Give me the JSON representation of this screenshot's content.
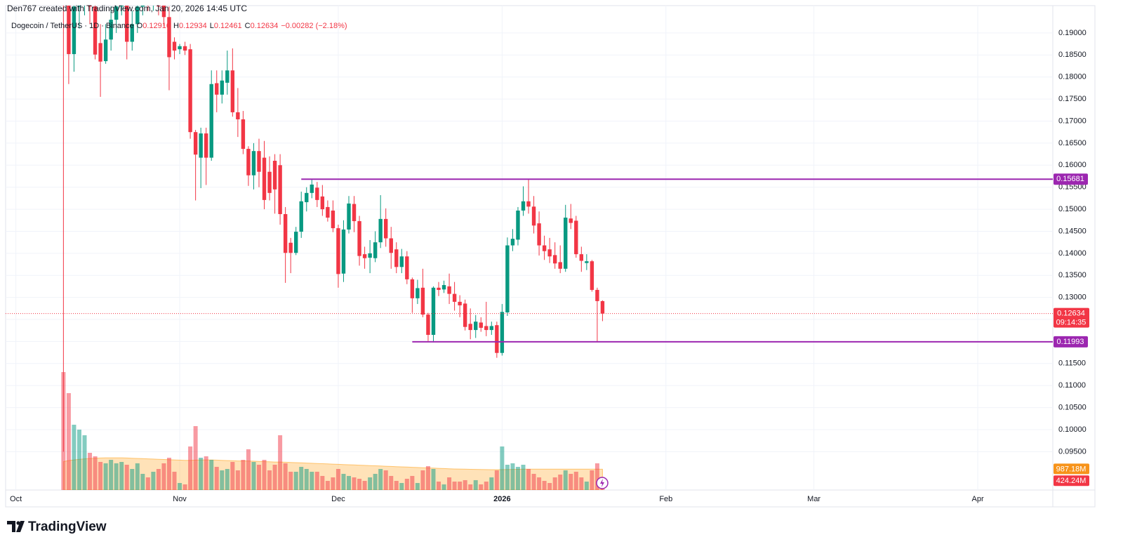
{
  "chart_data": {
    "type": "candlestick",
    "credit": "Den767 created with TradingView.com, Jan 20, 2026 14:45 UTC",
    "symbol": "Dogecoin / TetherUS · 1D · Binance",
    "legend_labels": [
      "O",
      "H",
      "L",
      "C"
    ],
    "change_label": "−0.00282 (−2.18%)",
    "brand": "TradingView",
    "up_color": "#089981",
    "down_color": "#f23645",
    "x": [
      9,
      10,
      11,
      12,
      13,
      14,
      15,
      16,
      17,
      18,
      19,
      20,
      21,
      22,
      23,
      24,
      25,
      26,
      27,
      28,
      29,
      30,
      31,
      32,
      33,
      34,
      35,
      36,
      37,
      38,
      39,
      40,
      41,
      42,
      43,
      44,
      45,
      46,
      47,
      48,
      49,
      50,
      51,
      52,
      53,
      54,
      55,
      56,
      57,
      58,
      59,
      60,
      61,
      62,
      63,
      64,
      65,
      66,
      67,
      68,
      69,
      70,
      71,
      72,
      73,
      74,
      75,
      76,
      77,
      78,
      79,
      80,
      81,
      82,
      83,
      84,
      85,
      86,
      87,
      88,
      89,
      90,
      91,
      92,
      93,
      94,
      95,
      96,
      97,
      98,
      99,
      100,
      101,
      102,
      103,
      104,
      105,
      106,
      107,
      108,
      109,
      110,
      111
    ],
    "open": [
      0.2532,
      0.199,
      0.1852,
      0.196,
      0.2,
      0.202,
      0.196,
      0.1877,
      0.1836,
      0.1885,
      0.193,
      0.196,
      0.2,
      0.188,
      0.192,
      0.196,
      0.198,
      0.197,
      0.199,
      0.2,
      0.1936,
      0.188,
      0.1863,
      0.187,
      0.1863,
      0.1675,
      0.1617,
      0.1672,
      0.1617,
      0.1786,
      0.176,
      0.1787,
      0.1815,
      0.172,
      0.1704,
      0.1637,
      0.1577,
      0.1632,
      0.1617,
      0.1585,
      0.161,
      0.16,
      0.1489,
      0.1424,
      0.1401,
      0.1449,
      0.1516,
      0.1537,
      0.1549,
      0.1529,
      0.1505,
      0.1497,
      0.1457,
      0.1354,
      0.1454,
      0.1512,
      0.1473,
      0.1398,
      0.139,
      0.1389,
      0.1425,
      0.1478,
      0.1434,
      0.1409,
      0.1369,
      0.1393,
      0.1341,
      0.1298,
      0.1322,
      0.1261,
      0.1215,
      0.1322,
      0.1318,
      0.1325,
      0.1308,
      0.129,
      0.1286,
      0.124,
      0.1226,
      0.1243,
      0.1235,
      0.1226,
      0.1237,
      0.1174,
      0.1266,
      0.1418,
      0.1431,
      0.1497,
      0.1518,
      0.1506,
      0.1468,
      0.1418,
      0.1409,
      0.1396,
      0.138,
      0.1365,
      0.1479,
      0.1474,
      0.1398,
      0.1378,
      0.1382,
      0.1317,
      0.12916
    ],
    "high": [
      0.2545,
      0.203,
      0.199,
      0.205,
      0.207,
      0.205,
      0.2,
      0.192,
      0.192,
      0.196,
      0.198,
      0.203,
      0.202,
      0.195,
      0.199,
      0.201,
      0.2,
      0.201,
      0.202,
      0.204,
      0.196,
      0.189,
      0.1875,
      0.188,
      0.1875,
      0.168,
      0.1685,
      0.1685,
      0.1815,
      0.1815,
      0.1815,
      0.186,
      0.1865,
      0.1775,
      0.1723,
      0.1643,
      0.165,
      0.166,
      0.1655,
      0.162,
      0.1625,
      0.1625,
      0.1505,
      0.1435,
      0.146,
      0.154,
      0.155,
      0.1568,
      0.1562,
      0.1555,
      0.152,
      0.152,
      0.1465,
      0.1475,
      0.153,
      0.153,
      0.1485,
      0.1415,
      0.143,
      0.145,
      0.1532,
      0.1502,
      0.146,
      0.1425,
      0.141,
      0.1405,
      0.1345,
      0.134,
      0.1365,
      0.1265,
      0.1325,
      0.1335,
      0.1338,
      0.1354,
      0.1335,
      0.1305,
      0.1295,
      0.1275,
      0.126,
      0.1255,
      0.129,
      0.1245,
      0.1245,
      0.1285,
      0.1436,
      0.1455,
      0.1505,
      0.1552,
      0.1568,
      0.153,
      0.1495,
      0.144,
      0.1435,
      0.1425,
      0.1418,
      0.151,
      0.1512,
      0.1485,
      0.1415,
      0.1398,
      0.1385,
      0.1322,
      0.12934
    ],
    "low": [
      0.095,
      0.1784,
      0.1812,
      0.191,
      0.194,
      0.192,
      0.184,
      0.1755,
      0.183,
      0.186,
      0.19,
      0.194,
      0.184,
      0.186,
      0.19,
      0.194,
      0.195,
      0.195,
      0.194,
      0.1915,
      0.177,
      0.184,
      0.1852,
      0.185,
      0.166,
      0.152,
      0.1548,
      0.1555,
      0.161,
      0.172,
      0.174,
      0.176,
      0.171,
      0.1664,
      0.1625,
      0.1553,
      0.1545,
      0.155,
      0.15,
      0.152,
      0.149,
      0.1465,
      0.1333,
      0.1355,
      0.1396,
      0.1435,
      0.1495,
      0.1525,
      0.1505,
      0.1485,
      0.1472,
      0.1448,
      0.1322,
      0.1335,
      0.1445,
      0.1448,
      0.1372,
      0.1365,
      0.1355,
      0.138,
      0.1412,
      0.1415,
      0.1365,
      0.1355,
      0.1355,
      0.133,
      0.1265,
      0.1285,
      0.1255,
      0.1201,
      0.1198,
      0.1303,
      0.131,
      0.1285,
      0.127,
      0.1255,
      0.1225,
      0.1205,
      0.1208,
      0.1222,
      0.1212,
      0.1215,
      0.1163,
      0.1168,
      0.1258,
      0.1405,
      0.1418,
      0.1485,
      0.149,
      0.1445,
      0.1395,
      0.1385,
      0.1378,
      0.1365,
      0.1355,
      0.1358,
      0.1455,
      0.139,
      0.1358,
      0.1362,
      0.1313,
      0.11993,
      0.12461
    ],
    "close": [
      0.199,
      0.1852,
      0.196,
      0.2,
      0.202,
      0.196,
      0.1851,
      0.1835,
      0.1885,
      0.193,
      0.196,
      0.2,
      0.188,
      0.192,
      0.196,
      0.198,
      0.197,
      0.199,
      0.196,
      0.1936,
      0.1845,
      0.186,
      0.187,
      0.186,
      0.1675,
      0.1624,
      0.1672,
      0.1617,
      0.1784,
      0.176,
      0.1792,
      0.1815,
      0.172,
      0.1704,
      0.1637,
      0.1577,
      0.1632,
      0.1585,
      0.1521,
      0.1537,
      0.1545,
      0.1489,
      0.1401,
      0.1401,
      0.1449,
      0.1518,
      0.1537,
      0.1556,
      0.1521,
      0.15,
      0.1481,
      0.1457,
      0.1353,
      0.1454,
      0.1513,
      0.1473,
      0.1394,
      0.1389,
      0.14,
      0.1425,
      0.1478,
      0.1434,
      0.1401,
      0.1369,
      0.1393,
      0.1341,
      0.1298,
      0.1321,
      0.1261,
      0.1215,
      0.1322,
      0.1317,
      0.1328,
      0.1308,
      0.129,
      0.1282,
      0.1233,
      0.1226,
      0.1245,
      0.1231,
      0.1226,
      0.1235,
      0.1174,
      0.1267,
      0.1418,
      0.1433,
      0.1497,
      0.1518,
      0.1506,
      0.1463,
      0.1418,
      0.1405,
      0.1393,
      0.1377,
      0.1365,
      0.1481,
      0.1469,
      0.1398,
      0.1383,
      0.1382,
      0.1317,
      0.12916,
      0.12634
    ],
    "volume": [
      5600,
      4600,
      3100,
      2867,
      2600,
      1767,
      1600,
      1333,
      1267,
      1433,
      1267,
      1333,
      1200,
      1000,
      1267,
      767,
      600,
      867,
      1000,
      1267,
      1533,
      867,
      333,
      267,
      2067,
      3033,
      1533,
      1600,
      1433,
      1100,
      933,
      1000,
      1333,
      933,
      1433,
      1933,
      1333,
      1200,
      1433,
      933,
      1200,
      2600,
      1267,
      867,
      867,
      1100,
      1000,
      867,
      867,
      667,
      433,
      600,
      1000,
      767,
      667,
      600,
      533,
      433,
      600,
      767,
      1000,
      933,
      667,
      433,
      333,
      533,
      667,
      333,
      933,
      1133,
      1000,
      400,
      267,
      600,
      400,
      400,
      467,
      267,
      467,
      267,
      400,
      600,
      933,
      2067,
      1200,
      1267,
      1100,
      1200,
      1000,
      767,
      600,
      433,
      333,
      600,
      733,
      933,
      767,
      867,
      600,
      400,
      933,
      1267,
      424.24
    ],
    "volume_ma": [
      1350,
      1400,
      1430,
      1460,
      1480,
      1500,
      1510,
      1520,
      1530,
      1530,
      1530,
      1530,
      1520,
      1510,
      1500,
      1490,
      1480,
      1470,
      1460,
      1450,
      1440,
      1430,
      1420,
      1410,
      1410,
      1420,
      1430,
      1430,
      1430,
      1420,
      1410,
      1400,
      1390,
      1380,
      1380,
      1380,
      1370,
      1360,
      1350,
      1340,
      1330,
      1330,
      1320,
      1310,
      1300,
      1290,
      1280,
      1270,
      1260,
      1250,
      1240,
      1230,
      1220,
      1210,
      1200,
      1190,
      1180,
      1170,
      1160,
      1150,
      1140,
      1130,
      1120,
      1110,
      1100,
      1090,
      1080,
      1070,
      1060,
      1050,
      1040,
      1030,
      1020,
      1010,
      1000,
      995,
      990,
      985,
      980,
      975,
      970,
      965,
      965,
      970,
      975,
      980,
      985,
      990,
      990,
      990,
      990,
      990,
      990,
      990,
      990,
      990,
      990,
      990,
      990,
      990,
      990,
      990,
      987.18
    ],
    "volume_label": "424.24M",
    "volume_ma_label": "987.18M",
    "volume_lim": [
      0,
      23000
    ],
    "countdown": "09:14:35",
    "levels": [
      {
        "value": 0.15681,
        "x_start": 54,
        "color": "#9c27b0"
      },
      {
        "value": 0.11993,
        "x_start": 75,
        "color": "#9c27b0"
      }
    ],
    "xlim": [
      -1.94,
      196.2
    ],
    "xticks": [
      {
        "value": 0,
        "label": "Oct"
      },
      {
        "value": 31,
        "label": "Nov"
      },
      {
        "value": 61,
        "label": "Dec"
      },
      {
        "value": 92,
        "label": "2026"
      },
      {
        "value": 123,
        "label": "Feb"
      },
      {
        "value": 151,
        "label": "Mar"
      },
      {
        "value": 182,
        "label": "Apr"
      }
    ],
    "ylim": [
      0.0863,
      0.1962
    ],
    "yticks": [
      {
        "value": 0.095,
        "label": "0.09500"
      },
      {
        "value": 0.1,
        "label": "0.10000"
      },
      {
        "value": 0.105,
        "label": "0.10500"
      },
      {
        "value": 0.11,
        "label": "0.11000"
      },
      {
        "value": 0.115,
        "label": "0.11500"
      },
      {
        "value": 0.12,
        "label": "0.12000"
      },
      {
        "value": 0.125,
        "label": "0.12500"
      },
      {
        "value": 0.13,
        "label": "0.13000"
      },
      {
        "value": 0.135,
        "label": "0.13500"
      },
      {
        "value": 0.14,
        "label": "0.14000"
      },
      {
        "value": 0.145,
        "label": "0.14500"
      },
      {
        "value": 0.15,
        "label": "0.15000"
      },
      {
        "value": 0.155,
        "label": "0.15500"
      },
      {
        "value": 0.16,
        "label": "0.16000"
      },
      {
        "value": 0.165,
        "label": "0.16500"
      },
      {
        "value": 0.17,
        "label": "0.17000"
      },
      {
        "value": 0.175,
        "label": "0.17500"
      },
      {
        "value": 0.18,
        "label": "0.18000"
      },
      {
        "value": 0.185,
        "label": "0.18500"
      },
      {
        "value": 0.19,
        "label": "0.19000"
      }
    ],
    "grid": true
  }
}
